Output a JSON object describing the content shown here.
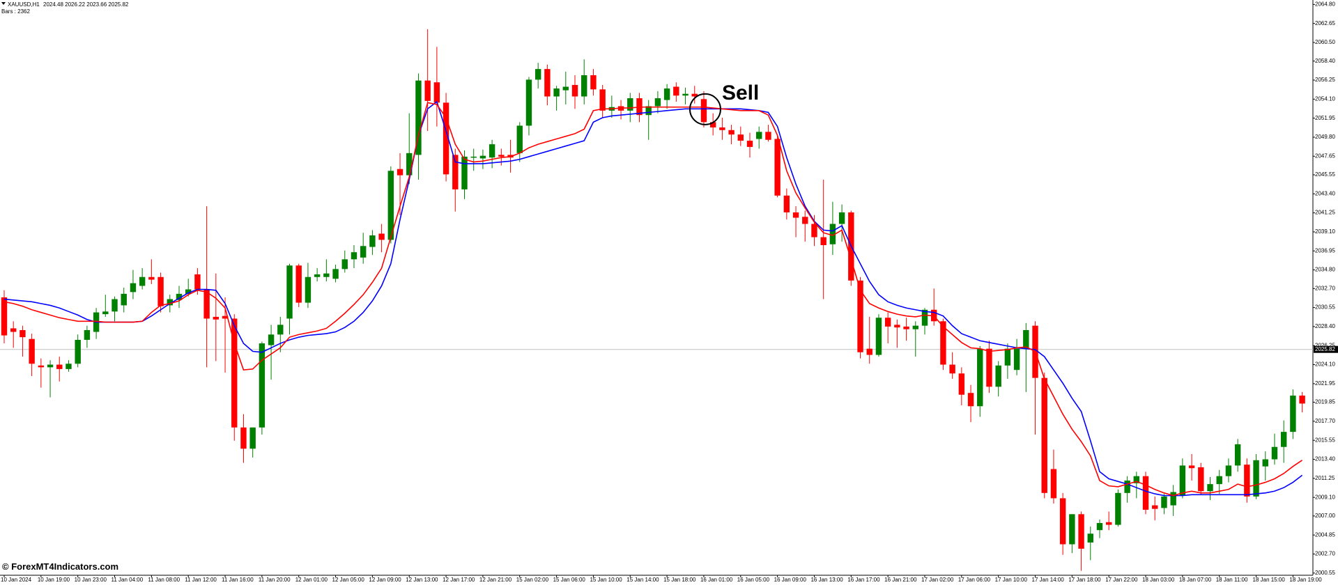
{
  "chart_data": {
    "type": "candlestick",
    "title": "XAUUSD,H1",
    "subtitle": "2024.48 2026.22 2023.66 2025.82",
    "bars_label": "Bars : 2362",
    "watermark": "© ForexMT4Indicators.com",
    "annotation": "Sell",
    "up_color": "#008000",
    "down_color": "#ff0000",
    "current_price": 2025.82,
    "ylim": [
      2000.3,
      2065.3
    ],
    "yticks": [
      {
        "value": 2064.8,
        "label": "2064.80"
      },
      2062.65,
      {
        "value": 2060.5,
        "label": "2060.50"
      },
      {
        "value": 2058.4,
        "label": "2058.40"
      },
      2056.25,
      {
        "value": 2054.1,
        "label": "2054.10"
      },
      2051.95,
      {
        "value": 2049.8,
        "label": "2049.80"
      },
      2047.65,
      2045.55,
      {
        "value": 2043.4,
        "label": "2043.40"
      },
      2041.25,
      {
        "value": 2039.1,
        "label": "2039.10"
      },
      2036.95,
      {
        "value": 2034.8,
        "label": "2034.80"
      },
      {
        "value": 2032.7,
        "label": "2032.70"
      },
      2030.55,
      {
        "value": 2028.4,
        "label": "2028.40"
      },
      2026.25,
      {
        "value": 2024.1,
        "label": "2024.10"
      },
      2021.95,
      2019.85,
      {
        "value": 2017.7,
        "label": "2017.70"
      },
      2015.55,
      {
        "value": 2013.4,
        "label": "2013.40"
      },
      2011.25,
      {
        "value": 2009.1,
        "label": "2009.10"
      },
      {
        "value": 2007.0,
        "label": "2007.00"
      },
      2004.85,
      {
        "value": 2002.7,
        "label": "2002.70"
      },
      2000.55
    ],
    "categories": [
      "10 Jan 2024",
      null,
      null,
      null,
      "10 Jan 19:00",
      null,
      null,
      null,
      "10 Jan 23:00",
      null,
      null,
      null,
      "11 Jan 04:00",
      null,
      null,
      null,
      "11 Jan 08:00",
      null,
      null,
      null,
      "11 Jan 12:00",
      null,
      null,
      null,
      "11 Jan 16:00",
      null,
      null,
      null,
      "11 Jan 20:00",
      null,
      null,
      null,
      "12 Jan 01:00",
      null,
      null,
      null,
      "12 Jan 05:00",
      null,
      null,
      null,
      "12 Jan 09:00",
      null,
      null,
      null,
      "12 Jan 13:00",
      null,
      null,
      null,
      "12 Jan 17:00",
      null,
      null,
      null,
      "12 Jan 21:00",
      null,
      null,
      null,
      "15 Jan 02:00",
      null,
      null,
      null,
      "15 Jan 06:00",
      null,
      null,
      null,
      "15 Jan 10:00",
      null,
      null,
      null,
      "15 Jan 14:00",
      null,
      null,
      null,
      "15 Jan 18:00",
      null,
      null,
      null,
      "16 Jan 01:00",
      null,
      null,
      null,
      "16 Jan 05:00",
      null,
      null,
      null,
      "16 Jan 09:00",
      null,
      null,
      null,
      "16 Jan 13:00",
      null,
      null,
      null,
      "16 Jan 17:00",
      null,
      null,
      null,
      "16 Jan 21:00",
      null,
      null,
      null,
      "17 Jan 02:00",
      null,
      null,
      null,
      "17 Jan 06:00",
      null,
      null,
      null,
      "17 Jan 10:00",
      null,
      null,
      null,
      "17 Jan 14:00",
      null,
      null,
      null,
      "17 Jan 18:00",
      null,
      null,
      null,
      "17 Jan 22:00",
      null,
      null,
      null,
      "18 Jan 03:00",
      null,
      null,
      null,
      "18 Jan 07:00",
      null,
      null,
      null,
      "18 Jan 11:00",
      null,
      null,
      null,
      "18 Jan 15:00",
      null,
      null,
      null,
      "18 Jan 19:00",
      null
    ],
    "open": [
      2031.7,
      2028.2,
      2028.0,
      2027.0,
      2024.0,
      2023.8,
      2024.1,
      2023.6,
      2024.2,
      2026.9,
      2027.8,
      2029.8,
      2030.1,
      2030.8,
      2032.3,
      2033.0,
      2034.0,
      2034.0,
      2030.8,
      2031.4,
      2032.1,
      2034.3,
      2032.6,
      2029.5,
      2029.6,
      2029.3,
      2017.0,
      2014.6,
      2017.0,
      2026.3,
      2027.5,
      2029.3,
      2035.3,
      2031.1,
      2034.0,
      2034.0,
      2033.8,
      2034.9,
      2036.0,
      2036.2,
      2037.4,
      2038.9,
      2038.2,
      2046.2,
      2045.5,
      2047.8,
      2056.2,
      2056.0,
      2053.7,
      2047.8,
      2043.9,
      2047.5,
      2047.4,
      2047.5,
      2047.8,
      2047.8,
      2048.0,
      2051.1,
      2056.3,
      2057.5,
      2054.4,
      2055.1,
      2055.7,
      2054.4,
      2056.8,
      2055.2,
      2052.8,
      2053.3,
      2052.8,
      2054.2,
      2052.3,
      2053.3,
      2054.0,
      2055.5,
      2054.5,
      2054.7,
      2054.1,
      2051.5,
      2050.9,
      2050.6,
      2050.1,
      2049.4,
      2049.6,
      2050.4,
      2049.6,
      2043.2,
      2041.3,
      2040.8,
      2040.0,
      2038.5,
      2037.7,
      2040.0,
      2041.3,
      2033.6,
      2025.9,
      2025.2,
      2029.4,
      2028.6,
      2028.4,
      2028.1,
      2028.5,
      2030.3,
      2029.0,
      2024.1,
      2023.1,
      2020.9,
      2019.4,
      2025.9,
      2021.6,
      2024.0,
      2023.5,
      2025.9,
      2028.5,
      2022.6,
      2012.3,
      2009.0,
      2003.8,
      2007.2,
      2004.0,
      2005.4,
      2006.3,
      2006.0,
      2009.6,
      2010.7,
      2011.5,
      2008.2,
      2007.9,
      2008.2,
      2009.3,
      2012.7,
      2012.5,
      2009.8,
      2010.6,
      2011.5,
      2012.7,
      2012.8,
      2009.2,
      2012.6,
      2013.4,
      2014.8,
      2016.5,
      2020.6
    ],
    "high": [
      2032.5,
      2029.0,
      2028.5,
      2027.6,
      2024.8,
      2024.6,
      2025.0,
      2024.6,
      2027.5,
      2028.5,
      2030.5,
      2032.0,
      2031.8,
      2032.8,
      2034.8,
      2035.0,
      2036.0,
      2034.5,
      2032.0,
      2033.0,
      2033.8,
      2035.0,
      2042.0,
      2034.4,
      2031.7,
      2029.8,
      2018.5,
      2016.7,
      2026.7,
      2028.6,
      2029.5,
      2035.5,
      2035.5,
      2035.6,
      2035.0,
      2036.0,
      2035.4,
      2037.0,
      2037.6,
      2039.0,
      2039.3,
      2040.0,
      2046.5,
      2048.0,
      2052.5,
      2057.0,
      2062.0,
      2060.0,
      2054.8,
      2048.5,
      2048.3,
      2048.5,
      2048.4,
      2049.5,
      2048.5,
      2049.5,
      2051.5,
      2056.6,
      2058.2,
      2058.0,
      2055.6,
      2057.2,
      2056.8,
      2058.6,
      2057.5,
      2055.7,
      2054.5,
      2054.0,
      2054.8,
      2054.8,
      2054.0,
      2055.0,
      2055.8,
      2056.0,
      2055.4,
      2055.6,
      2055.0,
      2052.5,
      2052.0,
      2051.2,
      2051.0,
      2050.3,
      2051.0,
      2051.2,
      2050.0,
      2044.0,
      2042.0,
      2041.5,
      2041.0,
      2045.0,
      2042.5,
      2042.2,
      2041.5,
      2034.0,
      2029.5,
      2029.8,
      2030.0,
      2029.2,
      2029.4,
      2029.0,
      2030.5,
      2032.7,
      2029.3,
      2025.5,
      2023.8,
      2021.8,
      2026.2,
      2026.8,
      2024.5,
      2026.5,
      2027.0,
      2028.8,
      2029.0,
      2023.2,
      2014.5,
      2009.6,
      2007.2,
      2007.5,
      2005.8,
      2006.6,
      2007.5,
      2010.0,
      2011.5,
      2012.0,
      2012.0,
      2009.2,
      2009.5,
      2010.5,
      2013.5,
      2014.0,
      2013.0,
      2011.4,
      2012.2,
      2013.5,
      2015.7,
      2013.5,
      2014.0,
      2014.3,
      2016.3,
      2017.8,
      2021.3,
      2021.0
    ],
    "low": [
      2026.5,
      2026.0,
      2025.0,
      2022.8,
      2021.5,
      2020.4,
      2022.2,
      2023.3,
      2023.8,
      2026.0,
      2027.0,
      2029.5,
      2029.0,
      2030.0,
      2031.5,
      2032.6,
      2033.2,
      2030.0,
      2030.0,
      2030.5,
      2031.8,
      2032.0,
      2023.8,
      2024.5,
      2023.2,
      2015.5,
      2013.0,
      2013.6,
      2016.2,
      2022.4,
      2025.5,
      2027.5,
      2030.6,
      2030.5,
      2033.5,
      2033.5,
      2033.4,
      2034.5,
      2035.0,
      2035.5,
      2036.5,
      2036.8,
      2037.8,
      2041.0,
      2044.5,
      2045.0,
      2050.5,
      2051.0,
      2044.8,
      2041.4,
      2042.8,
      2046.0,
      2046.2,
      2046.3,
      2046.6,
      2045.8,
      2047.0,
      2050.0,
      2055.3,
      2053.4,
      2052.8,
      2053.5,
      2053.0,
      2053.5,
      2054.5,
      2052.0,
      2052.0,
      2051.8,
      2051.5,
      2051.5,
      2049.5,
      2052.5,
      2053.0,
      2053.8,
      2053.5,
      2053.6,
      2050.9,
      2050.0,
      2049.5,
      2049.0,
      2048.8,
      2047.5,
      2048.5,
      2049.3,
      2043.0,
      2040.5,
      2038.5,
      2038.0,
      2037.5,
      2031.5,
      2036.5,
      2038.0,
      2033.0,
      2024.8,
      2024.2,
      2025.0,
      2026.5,
      2026.0,
      2026.8,
      2025.0,
      2027.5,
      2028.5,
      2023.5,
      2022.5,
      2019.5,
      2017.6,
      2018.2,
      2020.9,
      2020.5,
      2022.5,
      2022.9,
      2021.0,
      2016.2,
      2009.0,
      2008.4,
      2002.6,
      2002.8,
      2000.8,
      2002.0,
      2004.5,
      2005.4,
      2005.8,
      2008.5,
      2009.0,
      2007.2,
      2006.5,
      2007.2,
      2007.0,
      2009.0,
      2011.0,
      2009.4,
      2008.8,
      2009.5,
      2010.8,
      2012.0,
      2008.5,
      2008.9,
      2011.0,
      2012.8,
      2013.0,
      2015.7,
      2018.7
    ],
    "close": [
      2027.4,
      2027.8,
      2027.2,
      2024.2,
      2023.8,
      2024.1,
      2023.6,
      2024.2,
      2026.9,
      2028.0,
      2030.0,
      2030.1,
      2031.5,
      2032.1,
      2033.3,
      2034.0,
      2033.7,
      2030.7,
      2031.5,
      2032.1,
      2032.6,
      2032.6,
      2029.3,
      2029.2,
      2029.3,
      2017.0,
      2014.6,
      2017.0,
      2026.5,
      2027.5,
      2028.6,
      2035.3,
      2031.1,
      2034.0,
      2034.3,
      2034.4,
      2034.9,
      2036.0,
      2036.8,
      2037.5,
      2038.7,
      2038.2,
      2046.0,
      2045.5,
      2048.0,
      2056.2,
      2053.9,
      2053.7,
      2045.6,
      2043.9,
      2047.6,
      2047.6,
      2047.7,
      2049.0,
      2047.6,
      2047.5,
      2051.1,
      2056.3,
      2057.5,
      2054.4,
      2055.3,
      2055.5,
      2054.4,
      2056.8,
      2055.2,
      2052.8,
      2053.2,
      2052.8,
      2054.2,
      2052.3,
      2053.3,
      2054.2,
      2055.3,
      2054.5,
      2054.7,
      2054.4,
      2051.5,
      2050.9,
      2050.6,
      2050.1,
      2049.4,
      2048.7,
      2050.4,
      2049.5,
      2043.2,
      2041.3,
      2040.7,
      2040.0,
      2038.5,
      2037.6,
      2040.0,
      2041.3,
      2033.6,
      2025.5,
      2025.2,
      2029.4,
      2028.4,
      2028.3,
      2028.1,
      2028.5,
      2030.3,
      2029.0,
      2024.1,
      2023.1,
      2020.7,
      2019.4,
      2025.9,
      2021.6,
      2024.0,
      2025.9,
      2025.9,
      2028.0,
      2022.6,
      2009.6,
      2009.0,
      2003.8,
      2007.2,
      2003.3,
      2005.0,
      2006.2,
      2006.0,
      2009.6,
      2011.0,
      2011.5,
      2007.7,
      2007.8,
      2009.2,
      2009.7,
      2012.7,
      2012.4,
      2009.8,
      2010.6,
      2011.5,
      2012.7,
      2015.1,
      2009.2,
      2013.3,
      2013.4,
      2014.8,
      2016.5,
      2020.6,
      2019.7
    ],
    "series": [
      {
        "color": "#0000ff",
        "values": [
          2031.5,
          2031.4,
          2031.3,
          2031.2,
          2031.0,
          2030.8,
          2030.5,
          2030.1,
          2029.7,
          2029.2,
          2028.9,
          2028.9,
          2028.9,
          2028.9,
          2028.9,
          2029.0,
          2029.6,
          2030.3,
          2031.0,
          2031.6,
          2032.2,
          2032.6,
          2032.6,
          2032.5,
          2031.0,
          2028.5,
          2026.5,
          2025.6,
          2025.5,
          2026.0,
          2026.5,
          2026.9,
          2027.2,
          2027.4,
          2027.5,
          2027.6,
          2027.8,
          2028.3,
          2029.0,
          2030.0,
          2031.3,
          2033.0,
          2035.5,
          2040.5,
          2045.0,
          2050.0,
          2053.0,
          2053.8,
          2050.5,
          2047.0,
          2046.8,
          2046.8,
          2046.8,
          2046.9,
          2047.0,
          2047.1,
          2047.3,
          2047.6,
          2047.9,
          2048.2,
          2048.5,
          2048.8,
          2049.1,
          2049.4,
          2051.5,
          2052.0,
          2052.2,
          2052.3,
          2052.4,
          2052.5,
          2052.6,
          2052.7,
          2052.8,
          2052.9,
          2053.0,
          2053.0,
          2053.0,
          2053.0,
          2053.0,
          2053.0,
          2053.0,
          2052.9,
          2052.8,
          2052.6,
          2051.0,
          2047.5,
          2044.5,
          2042.0,
          2040.3,
          2039.3,
          2039.2,
          2039.8,
          2037.5,
          2035.5,
          2033.5,
          2032.0,
          2031.2,
          2030.8,
          2030.5,
          2030.3,
          2030.1,
          2030.0,
          2029.6,
          2028.5,
          2027.6,
          2027.2,
          2026.8,
          2026.6,
          2026.4,
          2026.2,
          2026.0,
          2025.9,
          2025.8,
          2025.0,
          2023.5,
          2022.0,
          2020.3,
          2018.8,
          2015.5,
          2012.0,
          2011.2,
          2010.9,
          2010.6,
          2010.2,
          2009.8,
          2009.5,
          2009.3,
          2009.3,
          2009.3,
          2009.4,
          2009.4,
          2009.4,
          2009.4,
          2009.4,
          2009.4,
          2009.4,
          2009.5,
          2009.6,
          2009.8,
          2010.2,
          2010.8,
          2011.6
        ]
      },
      {
        "color": "#ff0000",
        "values": [
          2031.2,
          2031.0,
          2030.7,
          2030.3,
          2030.0,
          2029.7,
          2029.4,
          2029.2,
          2029.0,
          2029.0,
          2029.0,
          2028.9,
          2028.9,
          2028.9,
          2028.9,
          2029.0,
          2030.0,
          2030.8,
          2031.0,
          2031.3,
          2032.0,
          2032.5,
          2032.3,
          2031.6,
          2030.5,
          2026.5,
          2023.5,
          2023.6,
          2024.6,
          2025.3,
          2026.0,
          2027.2,
          2027.5,
          2027.7,
          2027.9,
          2028.2,
          2029.0,
          2029.9,
          2030.9,
          2032.0,
          2033.4,
          2035.0,
          2038.5,
          2042.0,
          2045.3,
          2050.0,
          2053.7,
          2053.5,
          2052.0,
          2049.0,
          2047.3,
          2047.0,
          2047.1,
          2047.3,
          2047.5,
          2047.6,
          2048.0,
          2048.6,
          2049.0,
          2049.3,
          2049.6,
          2049.9,
          2050.2,
          2050.7,
          2052.8,
          2053.0,
          2053.0,
          2053.1,
          2053.1,
          2053.2,
          2053.2,
          2053.2,
          2053.2,
          2053.2,
          2053.2,
          2053.2,
          2053.2,
          2053.1,
          2053.0,
          2052.9,
          2052.8,
          2052.8,
          2052.8,
          2052.3,
          2050.0,
          2046.0,
          2043.5,
          2041.8,
          2040.2,
          2039.0,
          2038.7,
          2039.3,
          2036.0,
          2032.5,
          2031.0,
          2030.5,
          2030.1,
          2029.8,
          2029.6,
          2029.5,
          2029.7,
          2029.6,
          2028.4,
          2027.5,
          2026.6,
          2026.0,
          2025.9,
          2025.6,
          2025.7,
          2025.8,
          2026.0,
          2026.1,
          2025.6,
          2022.5,
          2020.5,
          2018.5,
          2016.8,
          2015.4,
          2013.8,
          2011.0,
          2010.4,
          2010.3,
          2010.6,
          2010.9,
          2010.5,
          2010.0,
          2009.6,
          2009.3,
          2009.6,
          2009.8,
          2009.6,
          2009.6,
          2009.8,
          2010.0,
          2010.6,
          2010.3,
          2010.5,
          2010.8,
          2011.2,
          2011.8,
          2012.6,
          2013.3
        ]
      }
    ]
  }
}
